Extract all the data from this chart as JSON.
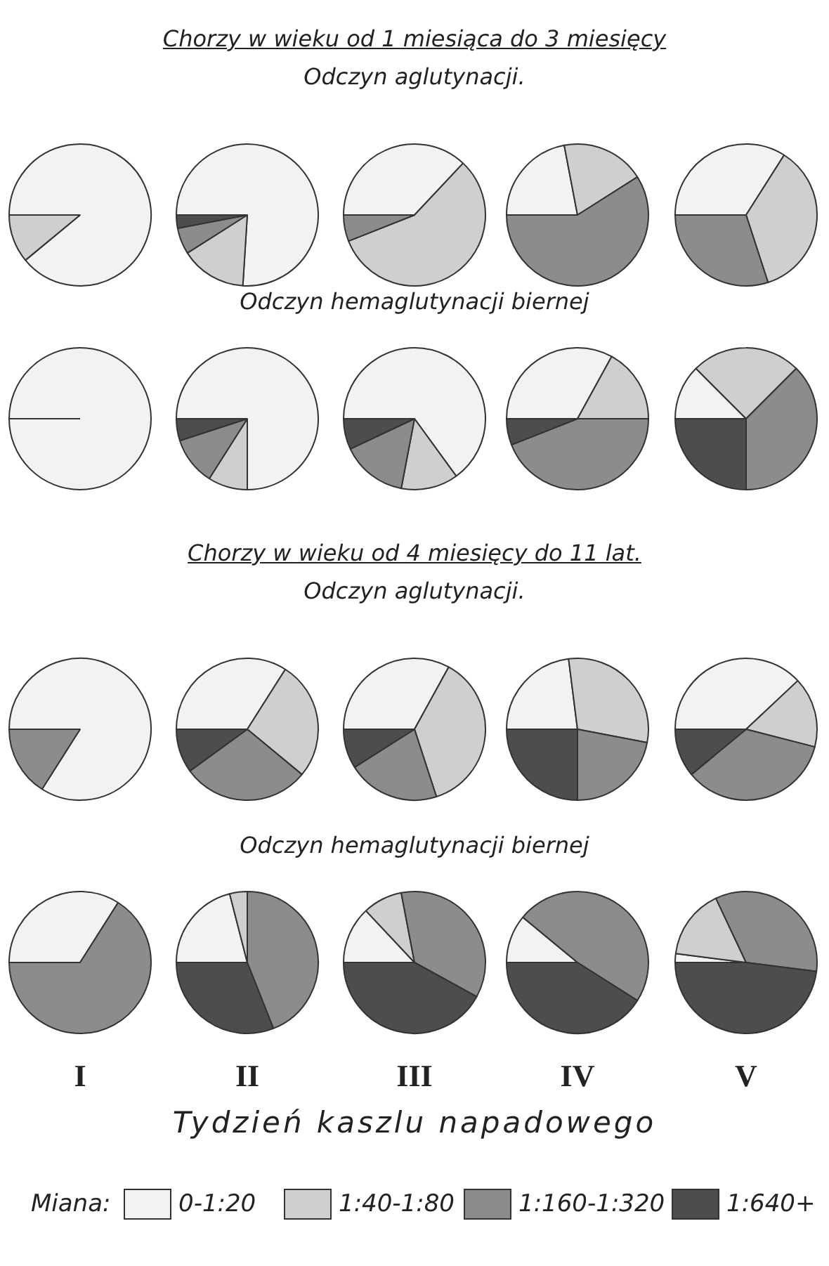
{
  "chart_data": [
    {
      "type": "pie",
      "values": [
        89,
        11,
        0,
        0
      ],
      "colors": [
        "#f2f2f2",
        "#cfcfcf",
        "#8c8c8c",
        "#4d4d4d"
      ]
    },
    {
      "type": "pie",
      "values": [
        76,
        15,
        6,
        3
      ],
      "colors": [
        "#f2f2f2",
        "#cfcfcf",
        "#8c8c8c",
        "#4d4d4d"
      ]
    },
    {
      "type": "pie",
      "title": "Chorzy w wieku od 1 miesiąca do 3 miesięcy",
      "subtitle": "Odczyn aglutynacji.",
      "values": [
        37,
        57,
        6,
        0
      ],
      "colors": [
        "#f2f2f2",
        "#cfcfcf",
        "#8c8c8c",
        "#4d4d4d"
      ]
    },
    {
      "type": "pie",
      "values": [
        22,
        19,
        59,
        0
      ],
      "colors": [
        "#f2f2f2",
        "#cfcfcf",
        "#8c8c8c",
        "#4d4d4d"
      ]
    },
    {
      "type": "pie",
      "values": [
        34,
        36,
        30,
        0
      ],
      "colors": [
        "#f2f2f2",
        "#cfcfcf",
        "#8c8c8c",
        "#4d4d4d"
      ]
    },
    {
      "type": "pie",
      "values": [
        100,
        0,
        0,
        0
      ],
      "colors": [
        "#f2f2f2",
        "#cfcfcf",
        "#8c8c8c",
        "#4d4d4d"
      ]
    },
    {
      "type": "pie",
      "values": [
        75,
        9,
        11,
        5
      ],
      "colors": [
        "#f2f2f2",
        "#cfcfcf",
        "#8c8c8c",
        "#4d4d4d"
      ]
    },
    {
      "type": "pie",
      "title": "Odczyn hemaglutynacji biernej",
      "values": [
        65,
        13,
        15,
        7
      ],
      "colors": [
        "#f2f2f2",
        "#cfcfcf",
        "#8c8c8c",
        "#4d4d4d"
      ]
    },
    {
      "type": "pie",
      "values": [
        33,
        17,
        44,
        6
      ],
      "colors": [
        "#f2f2f2",
        "#cfcfcf",
        "#8c8c8c",
        "#4d4d4d"
      ]
    },
    {
      "type": "pie",
      "values": [
        12.5,
        25,
        37.5,
        25
      ],
      "colors": [
        "#f2f2f2",
        "#cfcfcf",
        "#8c8c8c",
        "#4d4d4d"
      ]
    },
    {
      "type": "pie",
      "values": [
        84,
        0,
        16,
        0
      ],
      "colors": [
        "#f2f2f2",
        "#cfcfcf",
        "#8c8c8c",
        "#4d4d4d"
      ]
    },
    {
      "type": "pie",
      "values": [
        34,
        27,
        29,
        10
      ],
      "colors": [
        "#f2f2f2",
        "#cfcfcf",
        "#8c8c8c",
        "#4d4d4d"
      ]
    },
    {
      "type": "pie",
      "title": "Chorzy w wieku od 4 miesięcy do 11 lat.",
      "subtitle": "Odczyn aglutynacji.",
      "values": [
        33,
        37,
        21,
        9
      ],
      "colors": [
        "#f2f2f2",
        "#cfcfcf",
        "#8c8c8c",
        "#4d4d4d"
      ]
    },
    {
      "type": "pie",
      "values": [
        23,
        30,
        22,
        25
      ],
      "colors": [
        "#f2f2f2",
        "#cfcfcf",
        "#8c8c8c",
        "#4d4d4d"
      ]
    },
    {
      "type": "pie",
      "values": [
        38,
        16,
        35,
        11
      ],
      "colors": [
        "#f2f2f2",
        "#cfcfcf",
        "#8c8c8c",
        "#4d4d4d"
      ]
    },
    {
      "type": "pie",
      "xlabel": "I",
      "values": [
        34,
        0,
        66,
        0
      ],
      "colors": [
        "#f2f2f2",
        "#cfcfcf",
        "#8c8c8c",
        "#4d4d4d"
      ]
    },
    {
      "type": "pie",
      "xlabel": "II",
      "values": [
        21,
        4,
        44,
        31
      ],
      "colors": [
        "#f2f2f2",
        "#cfcfcf",
        "#8c8c8c",
        "#4d4d4d"
      ]
    },
    {
      "type": "pie",
      "title": "Odczyn hemaglutynacji biernej",
      "xlabel": "III",
      "annotations": [
        "Tydzień kaszlu napadowego"
      ],
      "legend": "bottom",
      "legend_title": "Miana:",
      "categories": [
        "0-1:20",
        "1:40-1:80",
        "1:160-1:320",
        "1:640+"
      ],
      "values": [
        13,
        9,
        36,
        42
      ],
      "colors": [
        "#f2f2f2",
        "#cfcfcf",
        "#8c8c8c",
        "#4d4d4d"
      ]
    },
    {
      "type": "pie",
      "xlabel": "IV",
      "values": [
        11,
        0,
        48,
        41
      ],
      "colors": [
        "#f2f2f2",
        "#cfcfcf",
        "#8c8c8c",
        "#4d4d4d"
      ]
    },
    {
      "type": "pie",
      "xlabel": "V",
      "values": [
        2,
        16,
        34,
        48
      ],
      "colors": [
        "#f2f2f2",
        "#cfcfcf",
        "#8c8c8c",
        "#4d4d4d"
      ]
    }
  ]
}
